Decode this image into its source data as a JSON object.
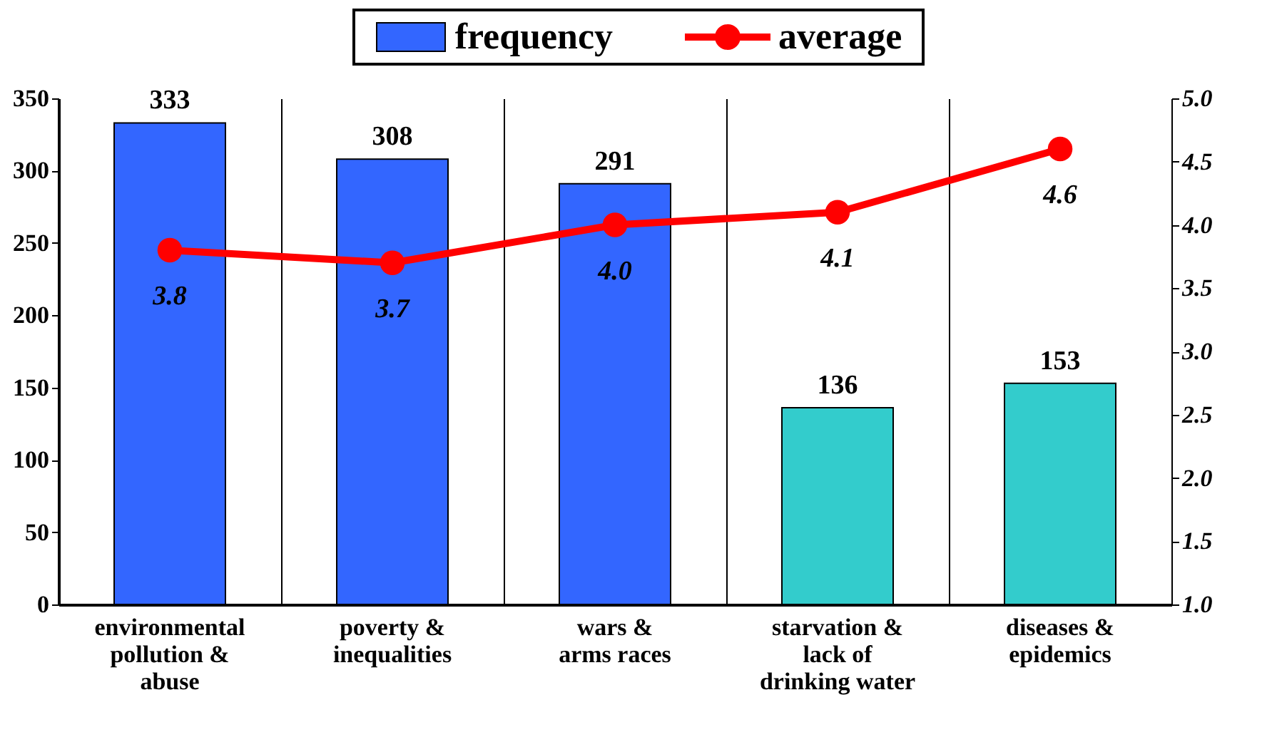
{
  "chart_data": {
    "type": "bar",
    "categories": [
      "environmental pollution & abuse",
      "poverty & inequalities",
      "wars & arms races",
      "starvation & lack of drinking water",
      "diseases & epidemics"
    ],
    "series": [
      {
        "name": "frequency",
        "color": "#3366ff",
        "colors": [
          "#3366ff",
          "#3366ff",
          "#3366ff",
          "#33cccc",
          "#33cccc"
        ],
        "values": [
          333,
          308,
          291,
          136,
          153
        ]
      },
      {
        "name": "average",
        "type": "line",
        "axis": "y2",
        "color": "#ff0000",
        "marker": "circle",
        "values": [
          3.8,
          3.7,
          4.0,
          4.1,
          4.6
        ],
        "value_labels": [
          "3.8",
          "3.7",
          "4.0",
          "4.1",
          "4.6"
        ]
      }
    ],
    "ylim": [
      0,
      350
    ],
    "yticks": [
      0,
      50,
      100,
      150,
      200,
      250,
      300,
      350
    ],
    "y2lim": [
      1,
      5
    ],
    "y2ticks": [
      {
        "value": 1,
        "label": "1.0"
      },
      {
        "value": 1.5,
        "label": "1.5"
      },
      {
        "value": 2,
        "label": "2.0"
      },
      {
        "value": 2.5,
        "label": "2.5"
      },
      {
        "value": 3,
        "label": "3.0"
      },
      {
        "value": 3.5,
        "label": "3.5"
      },
      {
        "value": 4,
        "label": "4.0"
      },
      {
        "value": 4.5,
        "label": "4.5"
      },
      {
        "value": 5,
        "label": "5.0"
      }
    ],
    "grid": "x",
    "legend": "top",
    "data_labels": true
  }
}
